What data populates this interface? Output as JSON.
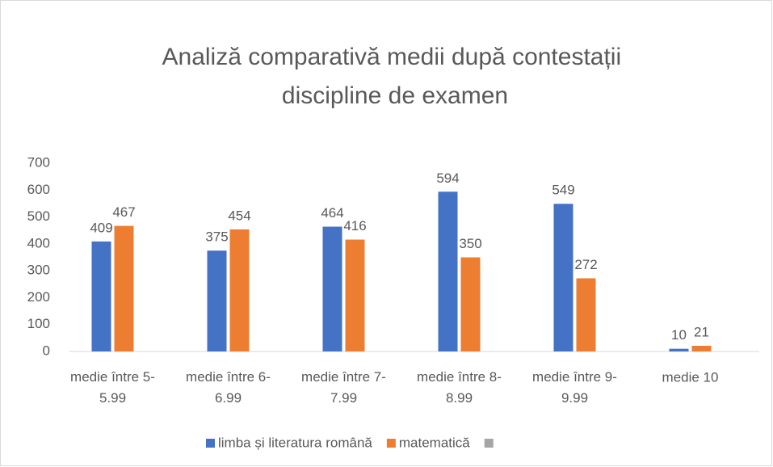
{
  "chart_data": {
    "type": "bar",
    "title": "Analiză comparativă medii după contestații discipline de examen",
    "categories": [
      "medie între 5-5.99",
      "medie între 6-6.99",
      "medie între 7-7.99",
      "medie între 8-8.99",
      "medie între 9-9.99",
      "medie 10"
    ],
    "series": [
      {
        "name": "limba și literatura română",
        "color": "#4472c4",
        "values": [
          409,
          375,
          464,
          594,
          549,
          10
        ]
      },
      {
        "name": "matematică",
        "color": "#ed7d31",
        "values": [
          467,
          454,
          416,
          350,
          272,
          21
        ]
      },
      {
        "name": null,
        "color": "#a5a5a5",
        "values": [
          null,
          null,
          null,
          null,
          null,
          null
        ]
      }
    ],
    "ylim": [
      0,
      700
    ],
    "yticks": [
      0,
      100,
      200,
      300,
      400,
      500,
      600,
      700
    ],
    "grid": false,
    "legend": "bottom"
  }
}
